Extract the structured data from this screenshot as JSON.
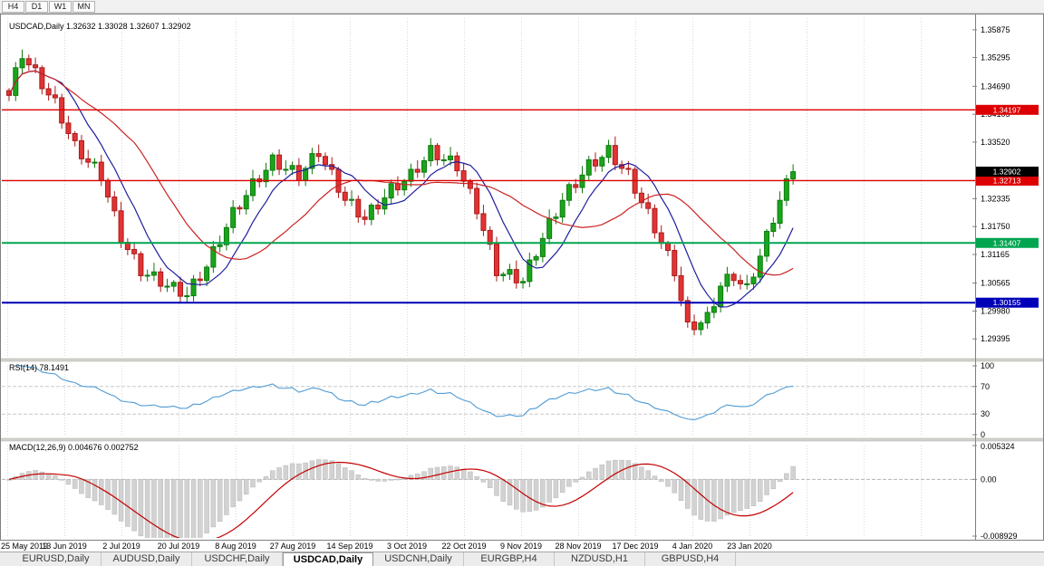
{
  "toolbar": {
    "timeframe_buttons": [
      "H4",
      "D1",
      "W1",
      "MN"
    ]
  },
  "chart_data": {
    "type": "candlestick",
    "symbol": "USDCAD",
    "timeframe": "Daily",
    "header": "USDCAD,Daily 1.32632 1.33028 1.32607 1.32902",
    "quote": {
      "open": "1.32632",
      "high": "1.33028",
      "low": "1.32607",
      "close": "1.32902"
    },
    "price_range": [
      1.2902,
      1.3612
    ],
    "y_ticks": [
      {
        "v": 1.35875,
        "t": "1.35875"
      },
      {
        "v": 1.35295,
        "t": "1.35295"
      },
      {
        "v": 1.3469,
        "t": "1.34690"
      },
      {
        "v": 1.34105,
        "t": "1.34105"
      },
      {
        "v": 1.3352,
        "t": "1.33520"
      },
      {
        "v": 1.32335,
        "t": "1.32335"
      },
      {
        "v": 1.3175,
        "t": "1.31750"
      },
      {
        "v": 1.31165,
        "t": "1.31165"
      },
      {
        "v": 1.30565,
        "t": "1.30565"
      },
      {
        "v": 1.2998,
        "t": "1.29980"
      },
      {
        "v": 1.29395,
        "t": "1.29395"
      }
    ],
    "current_price": {
      "v": 1.32902,
      "t": "1.32902",
      "bg": "#000000"
    },
    "hlines": [
      {
        "v": 1.34197,
        "t": "1.34197",
        "color": "#dd0000",
        "w": 1.4
      },
      {
        "v": 1.32713,
        "t": "1.32713",
        "color": "#dd0000",
        "w": 1.4
      },
      {
        "v": 1.31407,
        "t": "1.31407",
        "color": "#00a550",
        "w": 2
      },
      {
        "v": 1.30155,
        "t": "1.30155",
        "color": "#0000b8",
        "w": 2
      }
    ],
    "x_dates": [
      "25 May 2019",
      "13 Jun 2019",
      "2 Jul 2019",
      "20 Jul 2019",
      "8 Aug 2019",
      "27 Aug 2019",
      "14 Sep 2019",
      "3 Oct 2019",
      "22 Oct 2019",
      "9 Nov 2019",
      "28 Nov 2019",
      "17 Dec 2019",
      "4 Jan 2020",
      "23 Jan 2020"
    ],
    "first_open": 1.346,
    "closes": [
      1.345,
      1.3508,
      1.3527,
      1.3514,
      1.3508,
      1.3464,
      1.3451,
      1.3445,
      1.3392,
      1.337,
      1.3355,
      1.3317,
      1.331,
      1.331,
      1.3272,
      1.3237,
      1.3208,
      1.3142,
      1.3127,
      1.3118,
      1.3072,
      1.3073,
      1.308,
      1.305,
      1.305,
      1.3058,
      1.3029,
      1.303,
      1.3065,
      1.3062,
      1.309,
      1.3133,
      1.3137,
      1.3173,
      1.3215,
      1.3212,
      1.324,
      1.3275,
      1.3269,
      1.3293,
      1.3325,
      1.3295,
      1.3295,
      1.3303,
      1.3272,
      1.3297,
      1.3328,
      1.3322,
      1.3305,
      1.3295,
      1.3247,
      1.323,
      1.3232,
      1.3195,
      1.319,
      1.322,
      1.3212,
      1.3235,
      1.3265,
      1.3252,
      1.327,
      1.3295,
      1.3289,
      1.3313,
      1.3345,
      1.3315,
      1.3315,
      1.3323,
      1.3292,
      1.327,
      1.3255,
      1.3202,
      1.3167,
      1.3138,
      1.3072,
      1.3075,
      1.3085,
      1.3057,
      1.306,
      1.3105,
      1.3112,
      1.315,
      1.3192,
      1.3195,
      1.323,
      1.3263,
      1.3257,
      1.3283,
      1.3315,
      1.3302,
      1.332,
      1.3345,
      1.3305,
      1.3297,
      1.3295,
      1.3245,
      1.3225,
      1.3213,
      1.3162,
      1.314,
      1.3125,
      1.3072,
      1.302,
      1.2975,
      1.2959,
      1.2973,
      1.2995,
      1.3007,
      1.305,
      1.3075,
      1.3062,
      1.3055,
      1.3055,
      1.3069,
      1.3113,
      1.3165,
      1.3182,
      1.323,
      1.3275,
      1.329
    ],
    "moving_averages": [
      {
        "period": 8,
        "color": "#1e1e9e"
      },
      {
        "period": 20,
        "color": "#cc2222"
      }
    ],
    "colors": {
      "up": "#1aa51a",
      "up_border": "#0e7a0e",
      "down": "#e23434",
      "down_border": "#aa1a1a"
    }
  },
  "indicators": {
    "rsi": {
      "display": "RSI(14) 78.1491",
      "period": 14,
      "value": 78.1491,
      "levels": [
        70,
        30
      ],
      "axis_labels": [
        {
          "v": 100,
          "t": "100"
        },
        {
          "v": 70,
          "t": "70"
        },
        {
          "v": 30,
          "t": "30"
        },
        {
          "v": 0,
          "t": "0"
        }
      ],
      "color": "#4f9bd5"
    },
    "macd": {
      "display": "MACD(12,26,9) 0.004676 0.002752",
      "fast": 12,
      "slow": 26,
      "signal": 9,
      "macd_value": "0.004676",
      "signal_value": "0.002752",
      "axis_labels": [
        {
          "v": 0.005324,
          "t": "0.005324"
        },
        {
          "v": 0,
          "t": "0.00"
        },
        {
          "v": -0.008929,
          "t": "-0.008929"
        }
      ],
      "hist_color": "#d2d2d2",
      "line_color": "#c40000"
    }
  },
  "tabs": [
    {
      "label": "EURUSD,Daily",
      "active": false
    },
    {
      "label": "AUDUSD,Daily",
      "active": false
    },
    {
      "label": "USDCHF,Daily",
      "active": false
    },
    {
      "label": "USDCAD,Daily",
      "active": true
    },
    {
      "label": "USDCNH,Daily",
      "active": false
    },
    {
      "label": "EURGBP,H4",
      "active": false
    },
    {
      "label": "NZDUSD,H1",
      "active": false
    },
    {
      "label": "GBPUSD,H4",
      "active": false
    }
  ]
}
